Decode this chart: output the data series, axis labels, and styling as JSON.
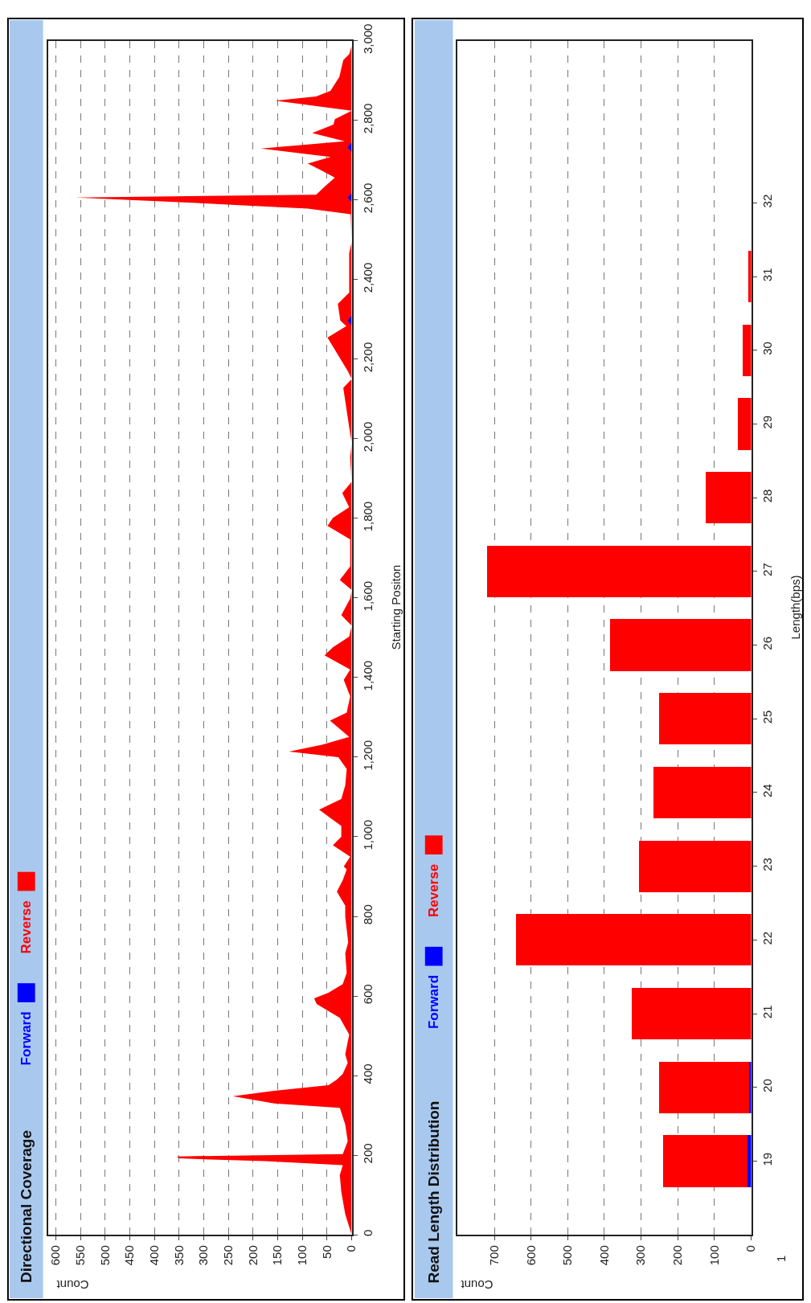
{
  "chart_data": [
    {
      "type": "area",
      "orientation": "horizontal",
      "title": "Directional Coverage",
      "xlabel": "Count",
      "ylabel": "Starting Positon",
      "xlim": [
        616,
        0
      ],
      "xticks": [
        0,
        50,
        100,
        150,
        200,
        250,
        300,
        350,
        400,
        450,
        500,
        550,
        600
      ],
      "ylim": [
        0,
        3000
      ],
      "yticks": [
        0,
        200,
        400,
        600,
        800,
        {
          "value": 1000,
          "label": "1,000"
        },
        {
          "value": 1200,
          "label": "1,200"
        },
        {
          "value": 1400,
          "label": "1,400"
        },
        {
          "value": 1600,
          "label": "1,600"
        },
        {
          "value": 1800,
          "label": "1,800"
        },
        {
          "value": 2000,
          "label": "2,000"
        },
        {
          "value": 2200,
          "label": "2,200"
        },
        {
          "value": 2400,
          "label": "2,400"
        },
        {
          "value": 2600,
          "label": "2,600"
        },
        {
          "value": 2800,
          "label": "2,800"
        },
        {
          "value": 3000,
          "label": "3,000"
        }
      ],
      "grid": "x",
      "legend": "bottom left",
      "series": [
        {
          "name": "Forward",
          "color": "#0000ff",
          "x": [
            0,
            2285,
            2297,
            2309,
            2595,
            2606,
            2617,
            2720,
            2732,
            2744,
            3000
          ],
          "values": [
            0,
            0,
            8,
            0,
            0,
            8,
            0,
            0,
            8,
            0,
            0
          ]
        },
        {
          "name": "Reverse",
          "color": "#ff0000",
          "x": [
            0,
            20,
            52,
            108,
            150,
            175,
            185,
            192,
            197,
            203,
            235,
            277,
            319,
            330,
            348,
            362,
            376,
            390,
            404,
            432,
            453,
            503,
            545,
            580,
            594,
            608,
            630,
            658,
            707,
            735,
            799,
            827,
            862,
            891,
            918,
            925,
            950,
            979,
            1000,
            1027,
            1068,
            1095,
            1129,
            1170,
            1200,
            1214,
            1231,
            1251,
            1292,
            1312,
            1353,
            1394,
            1420,
            1456,
            1476,
            1503,
            1530,
            1557,
            1598,
            1620,
            1645,
            1679,
            1747,
            1781,
            1801,
            1828,
            1863,
            1892,
            1952,
            1990,
            2029,
            2128,
            2150,
            2170,
            2254,
            2283,
            2297,
            2339,
            2367,
            2466,
            2494,
            2564,
            2578,
            2592,
            2606,
            2613,
            2634,
            2656,
            2677,
            2691,
            2708,
            2729,
            2747,
            2768,
            2789,
            2803,
            2824,
            2849,
            2860,
            2874,
            2909,
            2951,
            2966,
            2987
          ],
          "values": [
            0,
            5,
            13,
            21,
            24,
            18,
            175,
            351,
            354,
            18,
            8,
            13,
            24,
            157,
            241,
            157,
            47,
            30,
            18,
            8,
            13,
            5,
            24,
            71,
            76,
            47,
            18,
            10,
            13,
            7,
            13,
            13,
            30,
            18,
            10,
            16,
            3,
            38,
            21,
            21,
            66,
            21,
            13,
            10,
            27,
            127,
            60,
            5,
            44,
            10,
            3,
            16,
            3,
            55,
            38,
            5,
            0,
            21,
            3,
            0,
            24,
            3,
            3,
            49,
            38,
            5,
            19,
            0,
            3,
            0,
            5,
            17,
            0,
            8,
            49,
            11,
            23,
            28,
            5,
            5,
            0,
            2,
            89,
            314,
            560,
            72,
            54,
            34,
            66,
            89,
            43,
            184,
            14,
            80,
            37,
            34,
            0,
            155,
            72,
            43,
            25,
            17,
            5,
            0
          ]
        }
      ]
    },
    {
      "type": "bar",
      "orientation": "horizontal",
      "stacked": true,
      "title": "Read Length Distribution",
      "xlabel": "Count",
      "ylabel": "Length(bps)",
      "x": [
        19,
        20,
        21,
        22,
        23,
        24,
        25,
        26,
        27,
        28,
        29,
        30,
        31
      ],
      "xlim": [
        800,
        0
      ],
      "xticks": [
        0,
        100,
        200,
        300,
        400,
        500,
        600,
        700
      ],
      "annotations": [
        "1"
      ],
      "ylim": [
        18,
        34.2
      ],
      "yticks": [
        19,
        20,
        21,
        22,
        23,
        24,
        25,
        26,
        27,
        28,
        29,
        30,
        31,
        32
      ],
      "grid": "x",
      "legend": "bottom left",
      "series": [
        {
          "name": "Forward",
          "color": "#0000ff",
          "values": [
            10,
            6,
            0,
            0,
            0,
            0,
            0,
            0,
            0,
            0,
            0,
            0,
            0
          ]
        },
        {
          "name": "Reverse",
          "color": "#ff0000",
          "values": [
            230,
            246,
            326,
            640,
            305,
            266,
            252,
            385,
            720,
            124,
            37,
            24,
            8
          ]
        }
      ]
    }
  ]
}
